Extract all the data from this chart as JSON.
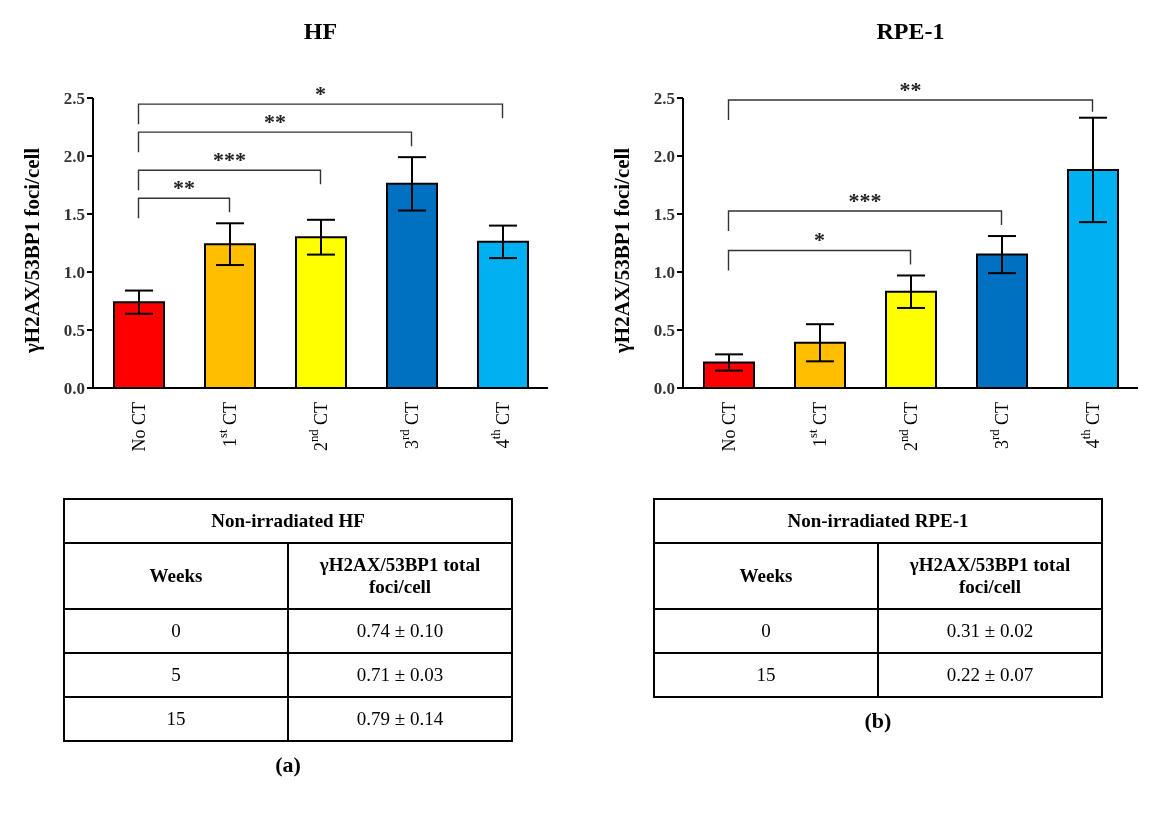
{
  "chart_data": [
    {
      "type": "bar",
      "title": "HF",
      "ylabel": "γH2AX/53BP1 foci/cell",
      "categories": [
        "No CT",
        "1$^{st}$ CT",
        "2$^{nd}$ CT",
        "3$^{rd}$ CT",
        "4$^{th}$ CT"
      ],
      "values": [
        0.74,
        1.24,
        1.3,
        1.76,
        1.26
      ],
      "errors": [
        0.1,
        0.18,
        0.15,
        0.23,
        0.14
      ],
      "colors": [
        "#ff0000",
        "#ffbf00",
        "#ffff00",
        "#0070c0",
        "#00b0f0"
      ],
      "ylim": [
        0,
        2.5
      ],
      "yticks": [
        {
          "value": 0,
          "label": "0.0"
        },
        {
          "value": 0.5,
          "label": "0.5"
        },
        {
          "value": 1,
          "label": "1.0"
        },
        {
          "value": 1.5,
          "label": "1.5"
        },
        {
          "value": 2,
          "label": "2.0"
        },
        {
          "value": 2.5,
          "label": "2.5"
        }
      ],
      "annotations": [
        "**",
        "***",
        "**",
        "*"
      ]
    },
    {
      "type": "bar",
      "title": "RPE-1",
      "ylabel": "γH2AX/53BP1 foci/cell",
      "categories": [
        "No CT",
        "1$^{st}$ CT",
        "2$^{nd}$ CT",
        "3$^{rd}$ CT",
        "4$^{th}$ CT"
      ],
      "values": [
        0.22,
        0.39,
        0.83,
        1.15,
        1.88
      ],
      "errors": [
        0.07,
        0.16,
        0.14,
        0.16,
        0.45
      ],
      "colors": [
        "#ff0000",
        "#ffbf00",
        "#ffff00",
        "#0070c0",
        "#00b0f0"
      ],
      "ylim": [
        0,
        2.5
      ],
      "yticks": [
        {
          "value": 0,
          "label": "0.0"
        },
        {
          "value": 0.5,
          "label": "0.5"
        },
        {
          "value": 1,
          "label": "1.0"
        },
        {
          "value": 1.5,
          "label": "1.5"
        },
        {
          "value": 2,
          "label": "2.0"
        },
        {
          "value": 2.5,
          "label": "2.5"
        }
      ],
      "annotations": [
        "*",
        "***",
        "**"
      ]
    },
    {
      "type": "other",
      "annotations": [
        "Non-irradiated HF",
        "Weeks",
        "γH2AX/53BP1 total foci/cell",
        "0",
        "0.74 ± 0.10",
        "5",
        "0.71 ± 0.03",
        "15",
        "0.79 ± 0.14",
        "(a)"
      ]
    },
    {
      "type": "other",
      "annotations": [
        "Non-irradiated RPE-1",
        "Weeks",
        "γH2AX/53BP1 total foci/cell",
        "0",
        "0.31 ± 0.02",
        "15",
        "0.22 ± 0.07",
        "(b)"
      ]
    }
  ]
}
